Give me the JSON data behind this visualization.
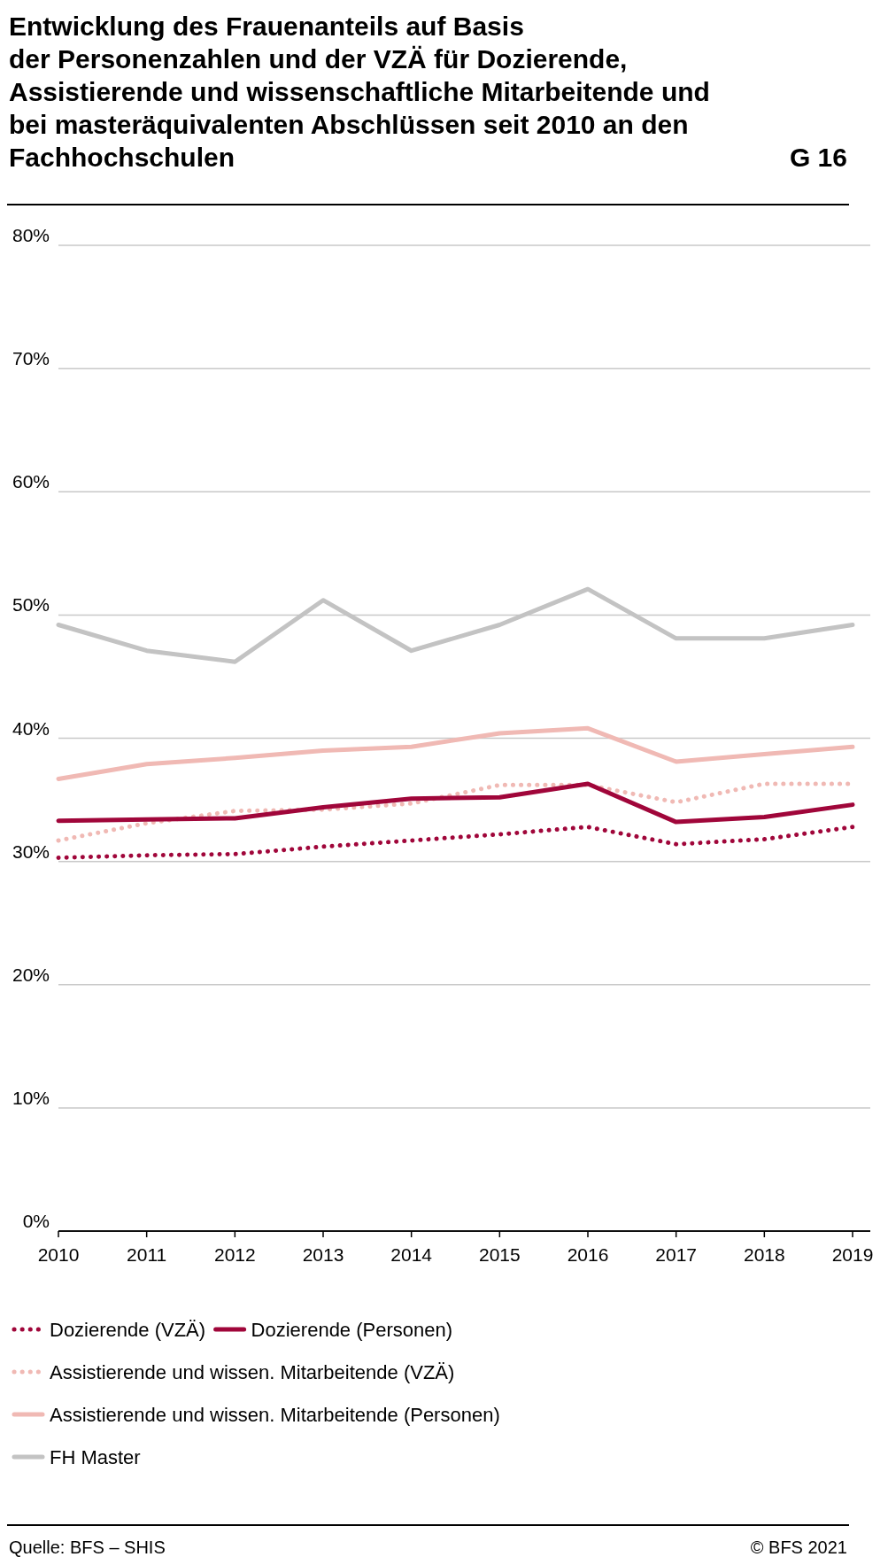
{
  "chart_data": {
    "type": "line",
    "title": "Entwicklung des Frauenanteils auf Basis\nder Personenzahlen und der VZÄ für Dozierende,\nAssistierende und wissenschaftliche Mitarbeitende und\nbei masteräquivalenten Abschlüssen seit 2010 an den\nFachhochschulen",
    "annotations": [
      "G 16",
      "Quelle: BFS – SHIS",
      "© BFS 2021"
    ],
    "categories": [
      "2010",
      "2011",
      "2012",
      "2013",
      "2014",
      "2015",
      "2016",
      "2017",
      "2018",
      "2019"
    ],
    "ylim": [
      0,
      80
    ],
    "yticks": [
      {
        "value": 0,
        "label": "0%"
      },
      {
        "value": 10,
        "label": "10%"
      },
      {
        "value": 20,
        "label": "20%"
      },
      {
        "value": 30,
        "label": "30%"
      },
      {
        "value": 40,
        "label": "40%"
      },
      {
        "value": 50,
        "label": "50%"
      },
      {
        "value": 60,
        "label": "60%"
      },
      {
        "value": 70,
        "label": "70%"
      },
      {
        "value": 80,
        "label": "80%"
      }
    ],
    "grid": "y",
    "legend": "bottom",
    "marker": "none",
    "series": [
      {
        "name": "FH Master",
        "color": "#c3c3c3",
        "line_style": "solid",
        "values": [
          49.2,
          47.1,
          46.2,
          51.2,
          47.1,
          49.2,
          52.1,
          48.1,
          48.1,
          49.2
        ]
      },
      {
        "name": "Assistierende und wissen. Mitarbeitende (Personen)",
        "color": "#f0b9b4",
        "line_style": "solid",
        "values": [
          36.7,
          37.9,
          38.4,
          39.0,
          39.3,
          40.4,
          40.8,
          38.1,
          38.7,
          39.3
        ]
      },
      {
        "name": "Assistierende und wissen. Mitarbeitende (VZÄ)",
        "color": "#f0b9b4",
        "line_style": "dotted",
        "values": [
          31.7,
          33.1,
          34.1,
          34.2,
          34.7,
          36.2,
          36.2,
          34.8,
          36.3,
          36.3
        ]
      },
      {
        "name": "Dozierende (Personen)",
        "color": "#a0063a",
        "line_style": "solid",
        "values": [
          33.3,
          33.4,
          33.5,
          34.4,
          35.1,
          35.2,
          36.3,
          33.2,
          33.6,
          34.6
        ]
      },
      {
        "name": "Dozierende (VZÄ)",
        "color": "#a0063a",
        "line_style": "dotted",
        "values": [
          30.3,
          30.5,
          30.6,
          31.2,
          31.7,
          32.2,
          32.8,
          31.4,
          31.8,
          32.8
        ]
      }
    ]
  }
}
